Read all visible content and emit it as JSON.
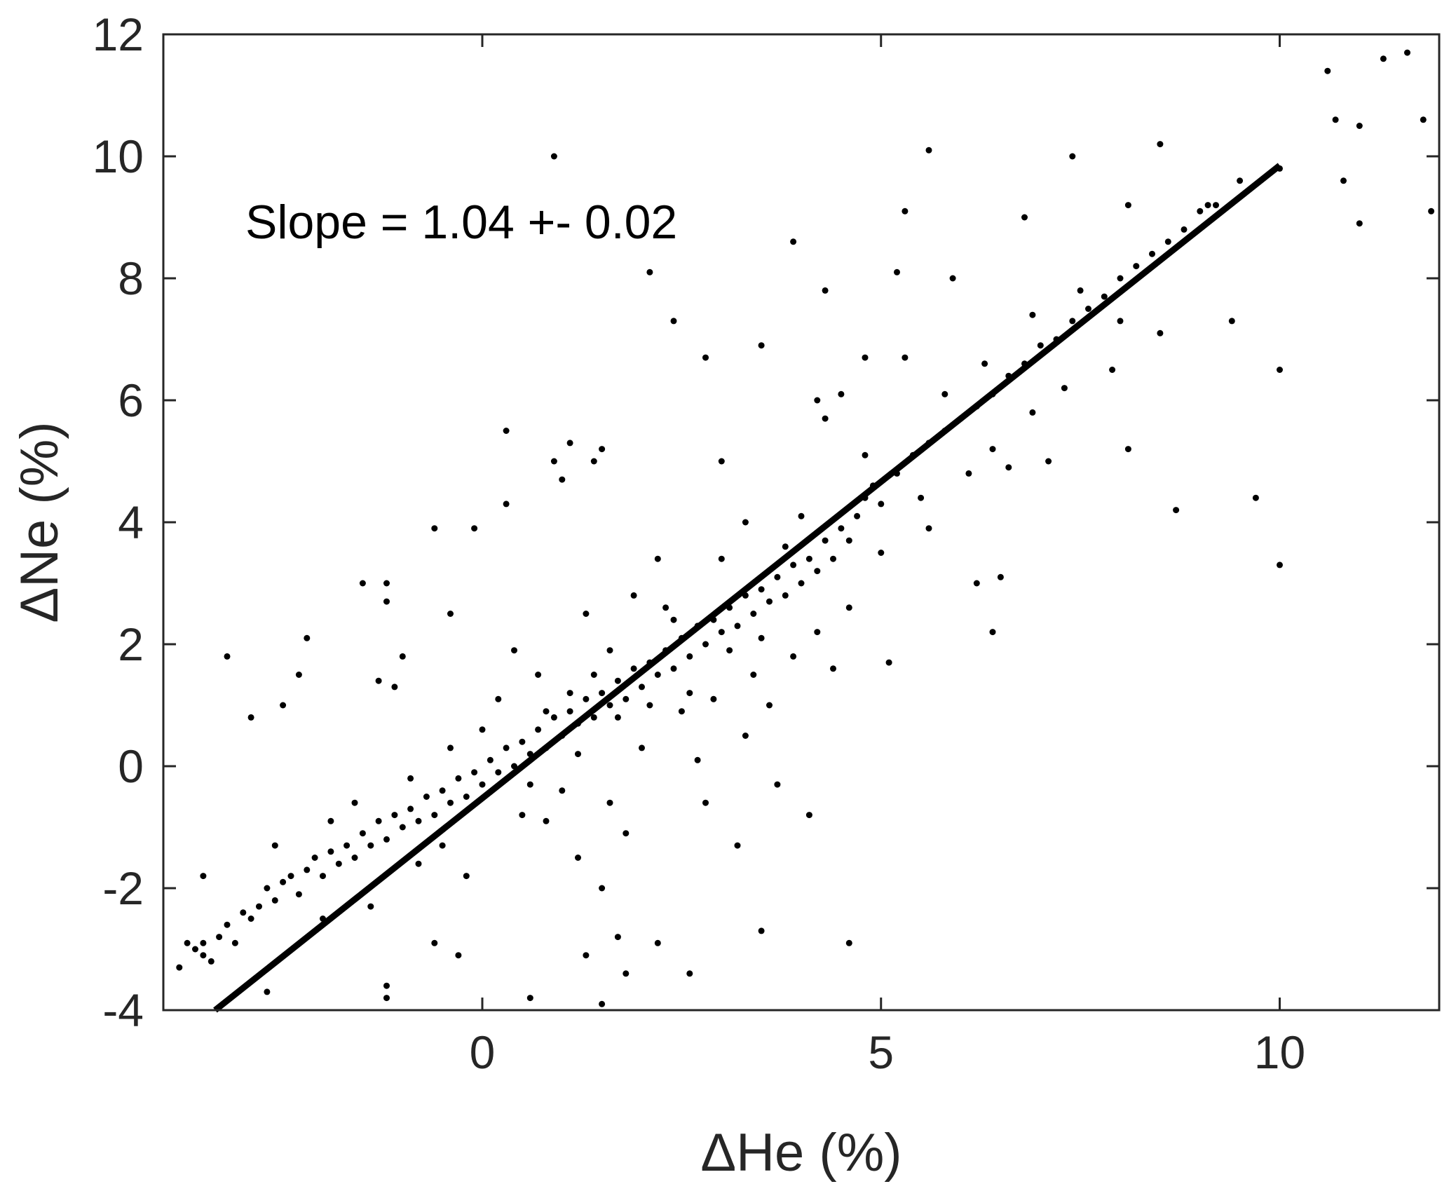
{
  "chart_data": {
    "type": "scatter",
    "title": "",
    "xlabel": "ΔHe (%)",
    "ylabel": "ΔNe (%)",
    "xlim": [
      -4,
      12
    ],
    "ylim": [
      -4,
      12
    ],
    "xticks": [
      0,
      5,
      10
    ],
    "yticks": [
      -4,
      -2,
      0,
      2,
      4,
      6,
      8,
      10,
      12
    ],
    "annotation": "Slope = 1.04 +- 0.02",
    "grid": false,
    "fit_line": {
      "x": [
        -3.35,
        10
      ],
      "y": [
        -4.0,
        9.85
      ],
      "slope": 1.04
    },
    "marker_color": "#000000",
    "points": [
      [
        -3.8,
        -3.3
      ],
      [
        -3.7,
        -2.9
      ],
      [
        -3.6,
        -3.0
      ],
      [
        -3.5,
        -2.9
      ],
      [
        -3.5,
        -3.1
      ],
      [
        -3.4,
        -3.2
      ],
      [
        -3.3,
        -2.8
      ],
      [
        -3.2,
        -2.6
      ],
      [
        -3.1,
        -2.9
      ],
      [
        -3.0,
        -2.4
      ],
      [
        -2.9,
        -2.5
      ],
      [
        -2.8,
        -2.3
      ],
      [
        -2.7,
        -2.0
      ],
      [
        -2.6,
        -2.2
      ],
      [
        -2.5,
        -1.9
      ],
      [
        -2.4,
        -1.8
      ],
      [
        -2.3,
        -2.1
      ],
      [
        -2.2,
        -1.7
      ],
      [
        -2.1,
        -1.5
      ],
      [
        -2.0,
        -1.8
      ],
      [
        -1.9,
        -1.4
      ],
      [
        -1.8,
        -1.6
      ],
      [
        -1.7,
        -1.3
      ],
      [
        -1.6,
        -1.5
      ],
      [
        -1.5,
        -1.1
      ],
      [
        -1.4,
        -1.3
      ],
      [
        -1.3,
        -0.9
      ],
      [
        -1.2,
        -1.2
      ],
      [
        -1.1,
        -0.8
      ],
      [
        -1.0,
        -1.0
      ],
      [
        -0.9,
        -0.7
      ],
      [
        -0.8,
        -0.9
      ],
      [
        -0.7,
        -0.5
      ],
      [
        -0.6,
        -0.8
      ],
      [
        -0.5,
        -0.4
      ],
      [
        -0.4,
        -0.6
      ],
      [
        -0.3,
        -0.2
      ],
      [
        -0.2,
        -0.5
      ],
      [
        -0.1,
        -0.1
      ],
      [
        0.0,
        -0.3
      ],
      [
        0.1,
        0.1
      ],
      [
        0.2,
        -0.1
      ],
      [
        0.3,
        0.3
      ],
      [
        0.4,
        0.0
      ],
      [
        0.5,
        0.4
      ],
      [
        0.6,
        0.2
      ],
      [
        0.7,
        0.6
      ],
      [
        0.8,
        0.3
      ],
      [
        0.9,
        0.8
      ],
      [
        1.0,
        0.5
      ],
      [
        1.1,
        0.9
      ],
      [
        1.2,
        0.7
      ],
      [
        1.3,
        1.1
      ],
      [
        1.4,
        0.8
      ],
      [
        1.5,
        1.2
      ],
      [
        1.6,
        1.0
      ],
      [
        1.7,
        1.4
      ],
      [
        1.8,
        1.1
      ],
      [
        1.9,
        1.6
      ],
      [
        2.0,
        1.3
      ],
      [
        2.1,
        1.7
      ],
      [
        2.2,
        1.5
      ],
      [
        2.3,
        1.9
      ],
      [
        2.4,
        1.6
      ],
      [
        2.5,
        2.1
      ],
      [
        2.6,
        1.8
      ],
      [
        2.7,
        2.3
      ],
      [
        2.8,
        2.0
      ],
      [
        2.9,
        2.4
      ],
      [
        3.0,
        2.2
      ],
      [
        3.1,
        2.6
      ],
      [
        3.2,
        2.3
      ],
      [
        3.3,
        2.8
      ],
      [
        3.4,
        2.5
      ],
      [
        3.5,
        2.9
      ],
      [
        3.6,
        2.7
      ],
      [
        3.7,
        3.1
      ],
      [
        3.8,
        2.8
      ],
      [
        3.9,
        3.3
      ],
      [
        4.0,
        3.0
      ],
      [
        4.1,
        3.4
      ],
      [
        4.2,
        3.2
      ],
      [
        4.3,
        3.7
      ],
      [
        4.4,
        3.4
      ],
      [
        4.5,
        3.9
      ],
      [
        4.6,
        3.7
      ],
      [
        4.7,
        4.1
      ],
      [
        4.8,
        4.4
      ],
      [
        4.9,
        4.6
      ],
      [
        5.0,
        4.3
      ],
      [
        5.2,
        4.8
      ],
      [
        5.4,
        5.1
      ],
      [
        5.6,
        5.3
      ],
      [
        5.8,
        5.5
      ],
      [
        6.0,
        5.7
      ],
      [
        6.2,
        5.9
      ],
      [
        6.4,
        6.1
      ],
      [
        6.6,
        6.4
      ],
      [
        6.8,
        6.6
      ],
      [
        7.0,
        6.9
      ],
      [
        7.2,
        7.0
      ],
      [
        7.4,
        7.3
      ],
      [
        7.6,
        7.5
      ],
      [
        7.8,
        7.7
      ],
      [
        8.0,
        8.0
      ],
      [
        8.2,
        8.2
      ],
      [
        8.4,
        8.4
      ],
      [
        8.6,
        8.6
      ],
      [
        8.8,
        8.8
      ],
      [
        9.0,
        9.1
      ],
      [
        9.2,
        9.2
      ],
      [
        9.5,
        9.6
      ],
      [
        -3.5,
        -1.8
      ],
      [
        -3.2,
        1.8
      ],
      [
        -2.9,
        0.8
      ],
      [
        -2.7,
        -3.7
      ],
      [
        -2.5,
        1.0
      ],
      [
        -2.3,
        1.5
      ],
      [
        -2.2,
        2.1
      ],
      [
        -1.5,
        3.0
      ],
      [
        -1.3,
        1.4
      ],
      [
        -1.2,
        2.7
      ],
      [
        -1.2,
        -3.8
      ],
      [
        -1.1,
        1.3
      ],
      [
        -1.2,
        -3.6
      ],
      [
        -1.2,
        3.0
      ],
      [
        -1.0,
        1.8
      ],
      [
        -0.6,
        3.9
      ],
      [
        -0.6,
        -2.9
      ],
      [
        -0.4,
        2.5
      ],
      [
        -0.3,
        -3.1
      ],
      [
        -0.1,
        3.9
      ],
      [
        0.3,
        5.5
      ],
      [
        0.3,
        4.3
      ],
      [
        0.6,
        -3.8
      ],
      [
        0.9,
        10.0
      ],
      [
        0.9,
        5.0
      ],
      [
        1.0,
        4.7
      ],
      [
        1.1,
        5.3
      ],
      [
        1.4,
        5.0
      ],
      [
        1.5,
        5.2
      ],
      [
        1.5,
        -2.0
      ],
      [
        1.3,
        -3.1
      ],
      [
        1.5,
        -3.9
      ],
      [
        1.7,
        -2.8
      ],
      [
        1.8,
        -3.4
      ],
      [
        2.1,
        8.1
      ],
      [
        2.2,
        -2.9
      ],
      [
        2.4,
        7.3
      ],
      [
        2.6,
        -3.4
      ],
      [
        2.8,
        6.7
      ],
      [
        3.0,
        5.0
      ],
      [
        3.2,
        -1.3
      ],
      [
        3.5,
        6.9
      ],
      [
        3.5,
        -2.7
      ],
      [
        3.7,
        -0.3
      ],
      [
        4.1,
        -0.8
      ],
      [
        4.3,
        7.8
      ],
      [
        4.2,
        6.0
      ],
      [
        4.5,
        6.1
      ],
      [
        3.9,
        8.6
      ],
      [
        4.6,
        -2.9
      ],
      [
        4.8,
        6.7
      ],
      [
        5.1,
        1.7
      ],
      [
        5.2,
        8.1
      ],
      [
        5.3,
        6.7
      ],
      [
        5.3,
        9.1
      ],
      [
        5.6,
        10.1
      ],
      [
        5.9,
        8.0
      ],
      [
        6.2,
        3.0
      ],
      [
        6.4,
        2.2
      ],
      [
        6.5,
        3.1
      ],
      [
        6.8,
        9.0
      ],
      [
        7.4,
        10.0
      ],
      [
        8.1,
        5.2
      ],
      [
        8.1,
        9.2
      ],
      [
        8.5,
        10.2
      ],
      [
        8.7,
        4.2
      ],
      [
        9.1,
        9.2
      ],
      [
        9.4,
        7.3
      ],
      [
        9.7,
        4.4
      ],
      [
        10.0,
        3.3
      ],
      [
        10.0,
        6.5
      ],
      [
        10.0,
        9.8
      ],
      [
        10.6,
        11.4
      ],
      [
        10.7,
        10.6
      ],
      [
        10.8,
        9.6
      ],
      [
        11.0,
        10.5
      ],
      [
        11.0,
        8.9
      ],
      [
        11.3,
        11.6
      ],
      [
        11.6,
        11.7
      ],
      [
        11.8,
        10.6
      ],
      [
        11.9,
        9.1
      ],
      [
        1.2,
        0.2
      ],
      [
        1.6,
        1.9
      ],
      [
        2.0,
        0.3
      ],
      [
        2.3,
        2.6
      ],
      [
        0.7,
        1.5
      ],
      [
        1.0,
        -0.4
      ],
      [
        2.7,
        0.1
      ],
      [
        3.0,
        3.4
      ],
      [
        2.5,
        0.9
      ],
      [
        1.9,
        2.8
      ],
      [
        0.2,
        1.1
      ],
      [
        -0.4,
        0.3
      ],
      [
        0.5,
        -0.8
      ],
      [
        3.4,
        1.5
      ],
      [
        3.9,
        1.8
      ],
      [
        4.2,
        2.2
      ],
      [
        4.4,
        1.6
      ],
      [
        1.3,
        2.5
      ],
      [
        0.8,
        -0.9
      ],
      [
        2.9,
        1.1
      ],
      [
        -0.8,
        -1.6
      ],
      [
        -1.6,
        -0.6
      ],
      [
        -2.6,
        -1.3
      ],
      [
        -2.0,
        -2.5
      ],
      [
        -0.2,
        -1.8
      ],
      [
        0.4,
        1.9
      ],
      [
        1.6,
        -0.6
      ],
      [
        2.2,
        3.4
      ],
      [
        3.3,
        4.0
      ],
      [
        3.6,
        1.0
      ],
      [
        4.0,
        4.1
      ],
      [
        4.6,
        2.6
      ],
      [
        5.0,
        3.5
      ],
      [
        5.5,
        4.4
      ],
      [
        6.1,
        4.8
      ],
      [
        6.4,
        5.2
      ],
      [
        6.9,
        5.8
      ],
      [
        7.3,
        6.2
      ],
      [
        7.9,
        6.5
      ],
      [
        8.5,
        7.1
      ],
      [
        5.8,
        6.1
      ],
      [
        6.3,
        6.6
      ],
      [
        6.9,
        7.4
      ],
      [
        7.5,
        7.8
      ],
      [
        8.0,
        7.3
      ],
      [
        7.1,
        5.0
      ],
      [
        6.6,
        4.9
      ],
      [
        5.6,
        3.9
      ],
      [
        4.8,
        5.1
      ],
      [
        4.3,
        5.7
      ],
      [
        1.7,
        0.8
      ],
      [
        1.4,
        1.5
      ],
      [
        1.1,
        1.2
      ],
      [
        0.8,
        0.9
      ],
      [
        2.1,
        1.0
      ],
      [
        2.4,
        2.4
      ],
      [
        2.6,
        1.2
      ],
      [
        3.1,
        1.9
      ],
      [
        3.5,
        2.1
      ],
      [
        3.8,
        3.6
      ],
      [
        -1.9,
        -0.9
      ],
      [
        -1.4,
        -2.3
      ],
      [
        -0.9,
        -0.2
      ],
      [
        -0.5,
        -1.3
      ],
      [
        0.0,
        0.6
      ],
      [
        0.6,
        -0.3
      ],
      [
        1.2,
        -1.5
      ],
      [
        1.8,
        -1.1
      ],
      [
        2.8,
        -0.6
      ],
      [
        3.3,
        0.5
      ]
    ]
  }
}
